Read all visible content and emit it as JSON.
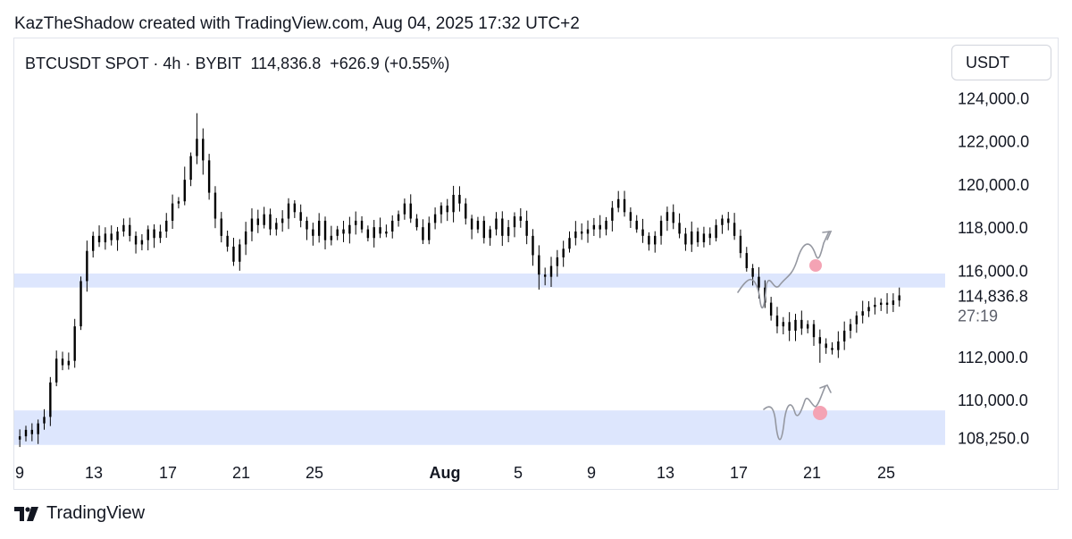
{
  "attribution": "KazTheShadow created with TradingView.com, Aug 04, 2025 17:32 UTC+2",
  "header": {
    "symbol": "BTCUSDT SPOT",
    "interval": "4h",
    "exchange": "BYBIT",
    "separator": "·",
    "last_price": "114,836.8",
    "change": "+626.9",
    "change_pct": "(+0.55%)"
  },
  "currency_button": "USDT",
  "footer": {
    "brand": "TradingView"
  },
  "colors": {
    "candle": "#000000",
    "zone_fill": "#dde6fd",
    "sketch_line": "#9598a1",
    "target_dot": "#f4a3b4",
    "text": "#131722",
    "axis_text": "#131722",
    "countdown_text": "#5d606b"
  },
  "chart_data": {
    "type": "candlestick",
    "series_name": "BTCUSDT SPOT",
    "interval": "4h",
    "y_axis": {
      "unit": "USDT",
      "range": [
        107600,
        124600
      ],
      "tick_labels": [
        "124,000.0",
        "122,000.0",
        "120,000.0",
        "118,000.0",
        "116,000.0",
        "112,000.0",
        "110,000.0",
        "108,250.0"
      ],
      "tick_values": [
        124000,
        122000,
        120000,
        118000,
        116000,
        112000,
        110000,
        108250
      ]
    },
    "last_price_label": {
      "price": "114,836.8",
      "value": 114836.8,
      "countdown": "27:19"
    },
    "x_axis": {
      "range_days": [
        8.8,
        34.2
      ],
      "tick_labels": [
        "9",
        "13",
        "17",
        "21",
        "25",
        "Aug",
        "5",
        "9",
        "13",
        "17",
        "21",
        "25"
      ],
      "tick_positions_days": [
        9,
        13,
        17,
        21,
        25,
        32,
        33,
        37,
        41,
        45,
        49,
        53
      ],
      "bold_ticks": [
        "Aug"
      ]
    },
    "zones": [
      {
        "name": "upper zone",
        "from": 115200,
        "to": 115850
      },
      {
        "name": "lower zone",
        "from": 107900,
        "to": 109500
      }
    ],
    "closes": [
      108300,
      108600,
      108400,
      108900,
      109200,
      110800,
      111900,
      111600,
      111800,
      113400,
      115500,
      116900,
      117600,
      117300,
      117700,
      117400,
      117800,
      118100,
      117600,
      117200,
      117400,
      117900,
      117500,
      117800,
      118300,
      119100,
      119200,
      120200,
      121300,
      122100,
      121100,
      119600,
      118400,
      117600,
      117100,
      116400,
      117200,
      117800,
      118400,
      118100,
      118600,
      117900,
      118200,
      118400,
      119100,
      118700,
      118300,
      117900,
      117600,
      118300,
      117400,
      117600,
      117900,
      117700,
      118100,
      118300,
      117900,
      117500,
      118000,
      117700,
      117800,
      118300,
      118600,
      119100,
      118400,
      118000,
      117400,
      118200,
      118600,
      119000,
      118700,
      119500,
      119100,
      118400,
      117900,
      118300,
      117500,
      117900,
      118400,
      117600,
      118000,
      118500,
      118300,
      117600,
      116700,
      115800,
      115700,
      116200,
      116600,
      117000,
      117500,
      117800,
      117700,
      117900,
      118100,
      117900,
      118300,
      118900,
      119300,
      118700,
      118300,
      117900,
      117600,
      117200,
      117600,
      118300,
      118700,
      118200,
      117700,
      117200,
      117800,
      117300,
      117700,
      117500,
      118100,
      118400,
      118200,
      117600,
      116800,
      116100,
      115700,
      115200,
      114500,
      113900,
      113400,
      113600,
      113200,
      113700,
      113300,
      113500,
      112900,
      112600,
      112400,
      112300,
      112700,
      113200,
      113500,
      113900,
      114100,
      114300,
      114400,
      114500,
      114400,
      114600,
      114836.8
    ],
    "sketches": [
      {
        "label": "projection near upper zone",
        "note": "hand-drawn arrow up"
      },
      {
        "label": "projection near lower zone",
        "note": "hand-drawn arrow up"
      }
    ]
  }
}
